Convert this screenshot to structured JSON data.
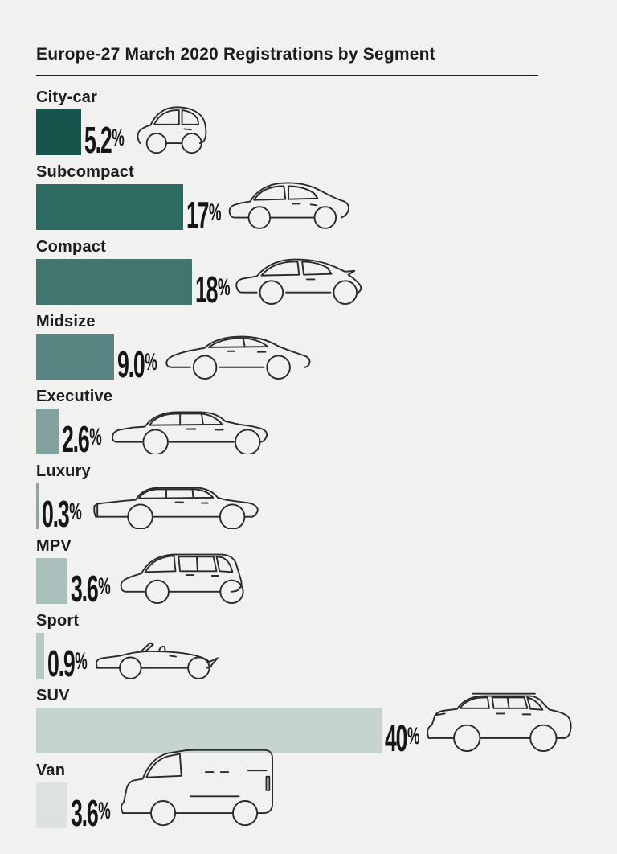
{
  "page": {
    "background": "#f1f1ef"
  },
  "header": {
    "title": "Europe-27 March 2020 Registrations by Segment"
  },
  "percent_sign": "%",
  "chart_data": {
    "type": "bar",
    "orientation": "horizontal",
    "title": "Europe-27 March 2020 Registrations by Segment",
    "unit": "% share of registrations",
    "categories": [
      "City-car",
      "Subcompact",
      "Compact",
      "Midsize",
      "Executive",
      "Luxury",
      "MPV",
      "Sport",
      "SUV",
      "Van"
    ],
    "values": [
      5.2,
      17,
      18,
      9.0,
      2.6,
      0.3,
      3.6,
      0.9,
      40,
      3.6
    ],
    "value_labels": [
      "5.2%",
      "17%",
      "18%",
      "9.0%",
      "2.6%",
      "0.3%",
      "3.6%",
      "0.9%",
      "40%",
      "3.6%"
    ],
    "bar_colors": [
      "#17544c",
      "#2d6a62",
      "#43756f",
      "#578581",
      "#84a29d",
      "#8ba7a2",
      "#a9bfbb",
      "#b7c9c5",
      "#c6d4d0",
      "#dbe2e0"
    ],
    "xlim": [
      0,
      42
    ],
    "grid": false,
    "legend": false,
    "axis_labels_shown": false
  },
  "rows": [
    {
      "label": "City-car",
      "value": 5.2,
      "display": "5.2",
      "color": "#17544c",
      "icon": "city-car"
    },
    {
      "label": "Subcompact",
      "value": 17,
      "display": "17",
      "color": "#2d6a62",
      "icon": "subcompact"
    },
    {
      "label": "Compact",
      "value": 18,
      "display": "18",
      "color": "#43756f",
      "icon": "compact"
    },
    {
      "label": "Midsize",
      "value": 9.0,
      "display": "9.0",
      "color": "#578581",
      "icon": "midsize"
    },
    {
      "label": "Executive",
      "value": 2.6,
      "display": "2.6",
      "color": "#84a29d",
      "icon": "executive"
    },
    {
      "label": "Luxury",
      "value": 0.3,
      "display": "0.3",
      "color": "#8ba7a2",
      "icon": "luxury"
    },
    {
      "label": "MPV",
      "value": 3.6,
      "display": "3.6",
      "color": "#a9bfbb",
      "icon": "mpv"
    },
    {
      "label": "Sport",
      "value": 0.9,
      "display": "0.9",
      "color": "#b7c9c5",
      "icon": "sport"
    },
    {
      "label": "SUV",
      "value": 40,
      "display": "40",
      "color": "#c6d4d0",
      "icon": "suv"
    },
    {
      "label": "Van",
      "value": 3.6,
      "display": "3.6",
      "color": "#dbe2e0",
      "icon": "van"
    }
  ]
}
